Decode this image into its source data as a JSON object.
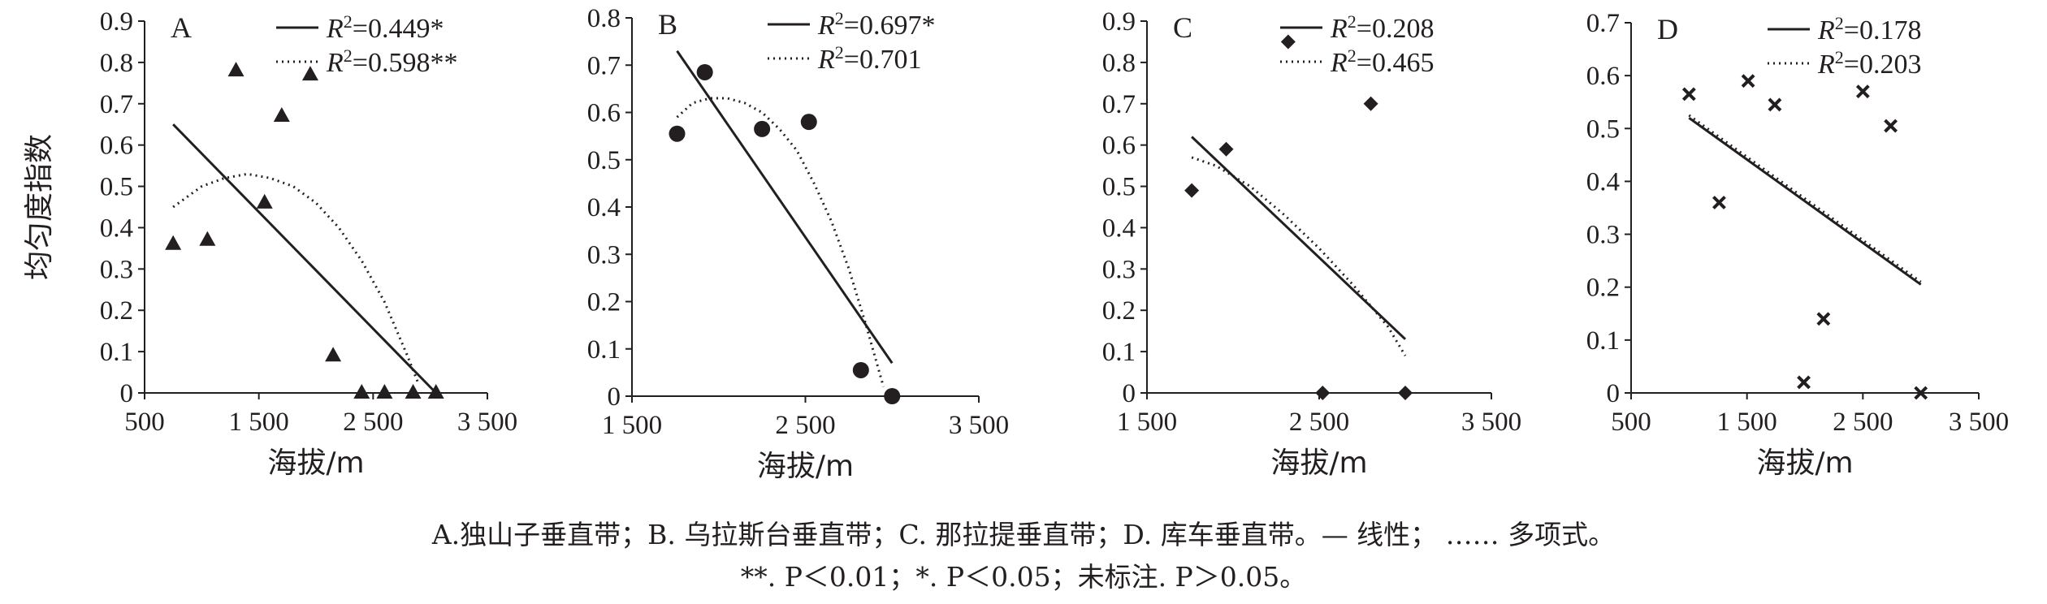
{
  "chart_data": [
    {
      "type": "scatter",
      "panel_label": "A",
      "xlabel": "海拔/m",
      "ylabel": "均匀度指数",
      "xlim": [
        500,
        3500
      ],
      "ylim": [
        0,
        0.9
      ],
      "xticks": [
        500,
        1500,
        2500,
        3500
      ],
      "xtick_labels": [
        "500",
        "1 500",
        "2 500",
        "3 500"
      ],
      "yticks": [
        0,
        0.1,
        0.2,
        0.3,
        0.4,
        0.5,
        0.6,
        0.7,
        0.8,
        0.9
      ],
      "ytick_labels": [
        "0",
        "0.1",
        "0.2",
        "0.3",
        "0.4",
        "0.5",
        "0.6",
        "0.7",
        "0.8",
        "0.9"
      ],
      "marker": "triangle",
      "points": [
        {
          "x": 750,
          "y": 0.36
        },
        {
          "x": 1050,
          "y": 0.37
        },
        {
          "x": 1300,
          "y": 0.78
        },
        {
          "x": 1550,
          "y": 0.46
        },
        {
          "x": 1700,
          "y": 0.67
        },
        {
          "x": 1950,
          "y": 0.77
        },
        {
          "x": 2150,
          "y": 0.09
        },
        {
          "x": 2400,
          "y": 0.0
        },
        {
          "x": 2600,
          "y": 0.0
        },
        {
          "x": 2850,
          "y": 0.0
        },
        {
          "x": 3050,
          "y": 0.0
        }
      ],
      "linear_fit": {
        "x": [
          750,
          3050
        ],
        "y": [
          0.65,
          0.0
        ]
      },
      "poly_fit": {
        "x": [
          750,
          1000,
          1200,
          1400,
          1600,
          1800,
          2000,
          2200,
          2400,
          2600,
          2800,
          2900
        ],
        "y": [
          0.45,
          0.5,
          0.52,
          0.53,
          0.52,
          0.5,
          0.46,
          0.4,
          0.32,
          0.22,
          0.09,
          0.02
        ]
      },
      "legend": [
        {
          "style": "solid",
          "label": "0.449*"
        },
        {
          "style": "dotted",
          "label": "0.598**"
        }
      ]
    },
    {
      "type": "scatter",
      "panel_label": "B",
      "xlabel": "海拔/m",
      "ylabel": "",
      "xlim": [
        1500,
        3500
      ],
      "ylim": [
        0,
        0.8
      ],
      "xticks": [
        1500,
        2500,
        3500
      ],
      "xtick_labels": [
        "1 500",
        "2 500",
        "3 500"
      ],
      "yticks": [
        0,
        0.1,
        0.2,
        0.3,
        0.4,
        0.5,
        0.6,
        0.7,
        0.8
      ],
      "ytick_labels": [
        "0",
        "0.1",
        "0.2",
        "0.3",
        "0.4",
        "0.5",
        "0.6",
        "0.7",
        "0.8"
      ],
      "marker": "circle",
      "points": [
        {
          "x": 1760,
          "y": 0.555
        },
        {
          "x": 1920,
          "y": 0.685
        },
        {
          "x": 2250,
          "y": 0.565
        },
        {
          "x": 2520,
          "y": 0.58
        },
        {
          "x": 2820,
          "y": 0.055
        },
        {
          "x": 3000,
          "y": 0.0
        }
      ],
      "linear_fit": {
        "x": [
          1760,
          3000
        ],
        "y": [
          0.73,
          0.07
        ]
      },
      "poly_fit": {
        "x": [
          1760,
          1850,
          1950,
          2050,
          2150,
          2250,
          2350,
          2450,
          2550,
          2650,
          2750,
          2850,
          2950
        ],
        "y": [
          0.59,
          0.62,
          0.63,
          0.63,
          0.62,
          0.6,
          0.565,
          0.52,
          0.45,
          0.37,
          0.27,
          0.15,
          0.02
        ]
      },
      "legend": [
        {
          "style": "solid",
          "label": "0.697*"
        },
        {
          "style": "dotted",
          "label": "0.701"
        }
      ]
    },
    {
      "type": "scatter",
      "panel_label": "C",
      "xlabel": "海拔/m",
      "ylabel": "",
      "xlim": [
        1500,
        3500
      ],
      "ylim": [
        0,
        0.9
      ],
      "xticks": [
        1500,
        2500,
        3500
      ],
      "xtick_labels": [
        "1 500",
        "2 500",
        "3 500"
      ],
      "yticks": [
        0,
        0.1,
        0.2,
        0.3,
        0.4,
        0.5,
        0.6,
        0.7,
        0.8,
        0.9
      ],
      "ytick_labels": [
        "0",
        "0.1",
        "0.2",
        "0.3",
        "0.4",
        "0.5",
        "0.6",
        "0.7",
        "0.8",
        "0.9"
      ],
      "marker": "diamond",
      "points": [
        {
          "x": 1760,
          "y": 0.49
        },
        {
          "x": 1960,
          "y": 0.59
        },
        {
          "x": 2320,
          "y": 0.85
        },
        {
          "x": 2520,
          "y": 0.0
        },
        {
          "x": 2800,
          "y": 0.7
        },
        {
          "x": 3000,
          "y": 0.0
        }
      ],
      "linear_fit": {
        "x": [
          1760,
          3000
        ],
        "y": [
          0.62,
          0.13
        ]
      },
      "poly_fit": {
        "x": [
          1760,
          1900,
          2100,
          2300,
          2500,
          2700,
          2900,
          3000
        ],
        "y": [
          0.57,
          0.55,
          0.5,
          0.43,
          0.35,
          0.26,
          0.16,
          0.09
        ]
      },
      "legend": [
        {
          "style": "solid",
          "label": "0.208"
        },
        {
          "style": "dotted",
          "label": "0.465"
        }
      ]
    },
    {
      "type": "scatter",
      "panel_label": "D",
      "xlabel": "海拔/m",
      "ylabel": "",
      "xlim": [
        500,
        3500
      ],
      "ylim": [
        0,
        0.7
      ],
      "xticks": [
        500,
        1500,
        2500,
        3500
      ],
      "xtick_labels": [
        "500",
        "1 500",
        "2 500",
        "3 500"
      ],
      "yticks": [
        0,
        0.1,
        0.2,
        0.3,
        0.4,
        0.5,
        0.6,
        0.7
      ],
      "ytick_labels": [
        "0",
        "0.1",
        "0.2",
        "0.3",
        "0.4",
        "0.5",
        "0.6",
        "0.7"
      ],
      "marker": "cross",
      "points": [
        {
          "x": 1000,
          "y": 0.565
        },
        {
          "x": 1260,
          "y": 0.36
        },
        {
          "x": 1510,
          "y": 0.59
        },
        {
          "x": 1740,
          "y": 0.545
        },
        {
          "x": 1990,
          "y": 0.02
        },
        {
          "x": 2160,
          "y": 0.14
        },
        {
          "x": 2500,
          "y": 0.57
        },
        {
          "x": 2740,
          "y": 0.505
        },
        {
          "x": 3000,
          "y": 0.0
        }
      ],
      "linear_fit": {
        "x": [
          1000,
          3000
        ],
        "y": [
          0.52,
          0.205
        ]
      },
      "poly_fit": {
        "x": [
          1000,
          3000
        ],
        "y": [
          0.525,
          0.21
        ]
      },
      "legend": [
        {
          "style": "solid",
          "label": "0.178"
        },
        {
          "style": "dotted",
          "label": "0.203"
        }
      ]
    }
  ],
  "caption": {
    "line1": "A.独山子垂直带；B. 乌拉斯台垂直带；C. 那拉提垂直带；D. 库车垂直带。— 线性； …… 多项式。",
    "line2": "**. P＜0.01；*.  P＜0.05；未标注. P＞0.05。"
  }
}
